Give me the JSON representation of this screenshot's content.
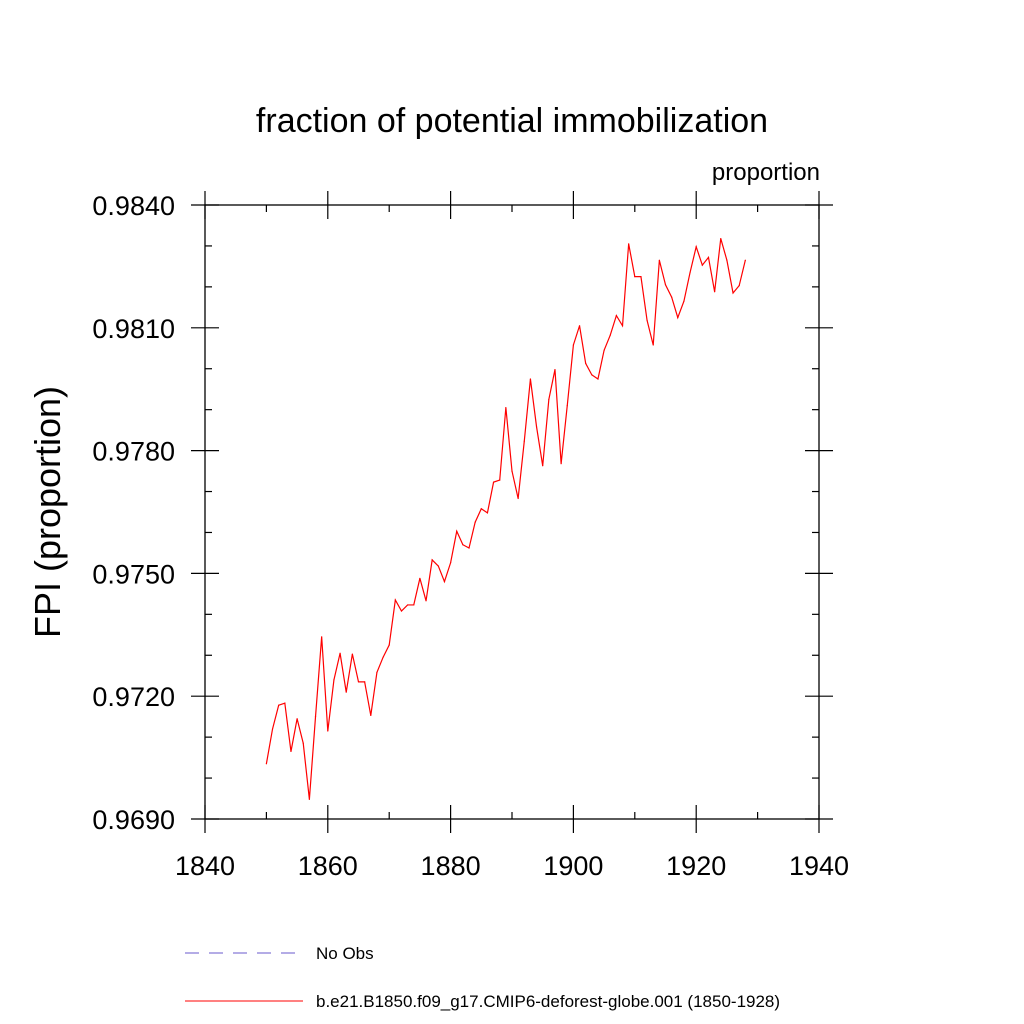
{
  "chart_data": {
    "type": "line",
    "title": "fraction of potential immobilization",
    "units_label": "proportion",
    "ylabel": "FPI  (proportion)",
    "xlabel": "",
    "xlim": [
      1840,
      1940
    ],
    "ylim": [
      0.969,
      0.984
    ],
    "x_major_ticks": [
      1840,
      1860,
      1880,
      1900,
      1920,
      1940
    ],
    "x_tick_labels": [
      "1840",
      "1860",
      "1880",
      "1900",
      "1920",
      "1940"
    ],
    "y_major_ticks": [
      0.969,
      0.972,
      0.975,
      0.978,
      0.981,
      0.984
    ],
    "y_tick_labels": [
      "0.9690",
      "0.9720",
      "0.9750",
      "0.9780",
      "0.9810",
      "0.9840"
    ],
    "grid": false,
    "legend_position": "bottom",
    "series": [
      {
        "name": "No Obs",
        "color": "#6a5acd",
        "style": "dashed",
        "x": [],
        "values": []
      },
      {
        "name": "b.e21.B1850.f09_g17.CMIP6-deforest-globe.001 (1850-1928)",
        "color": "#ff0000",
        "style": "solid",
        "x": [
          1850,
          1851,
          1852,
          1853,
          1854,
          1855,
          1856,
          1857,
          1858,
          1859,
          1860,
          1861,
          1862,
          1863,
          1864,
          1865,
          1866,
          1867,
          1868,
          1869,
          1870,
          1871,
          1872,
          1873,
          1874,
          1875,
          1876,
          1877,
          1878,
          1879,
          1880,
          1881,
          1882,
          1883,
          1884,
          1885,
          1886,
          1887,
          1888,
          1889,
          1890,
          1891,
          1892,
          1893,
          1894,
          1895,
          1896,
          1897,
          1898,
          1899,
          1900,
          1901,
          1902,
          1903,
          1904,
          1905,
          1906,
          1907,
          1908,
          1909,
          1910,
          1911,
          1912,
          1913,
          1914,
          1915,
          1916,
          1917,
          1918,
          1919,
          1920,
          1921,
          1922,
          1923,
          1924,
          1925,
          1926,
          1927,
          1928
        ],
        "values": [
          0.97035,
          0.9712,
          0.97178,
          0.97183,
          0.97065,
          0.97145,
          0.97085,
          0.96948,
          0.9715,
          0.97345,
          0.97115,
          0.9724,
          0.97305,
          0.9721,
          0.97303,
          0.97235,
          0.97235,
          0.97153,
          0.97258,
          0.97295,
          0.97325,
          0.97435,
          0.97408,
          0.97423,
          0.97423,
          0.97488,
          0.97433,
          0.97533,
          0.97518,
          0.9748,
          0.97526,
          0.97603,
          0.9757,
          0.97562,
          0.97625,
          0.97658,
          0.97648,
          0.97723,
          0.97728,
          0.97905,
          0.9775,
          0.97683,
          0.97823,
          0.97975,
          0.97858,
          0.97763,
          0.97925,
          0.97998,
          0.97768,
          0.9791,
          0.98058,
          0.98105,
          0.98013,
          0.97985,
          0.97975,
          0.98045,
          0.98082,
          0.9813,
          0.98105,
          0.98305,
          0.98225,
          0.98225,
          0.98118,
          0.98058,
          0.98265,
          0.98205,
          0.98175,
          0.98125,
          0.98165,
          0.98235,
          0.98298,
          0.98253,
          0.98272,
          0.98188,
          0.98318,
          0.98265,
          0.98185,
          0.98203,
          0.98265
        ]
      }
    ]
  }
}
